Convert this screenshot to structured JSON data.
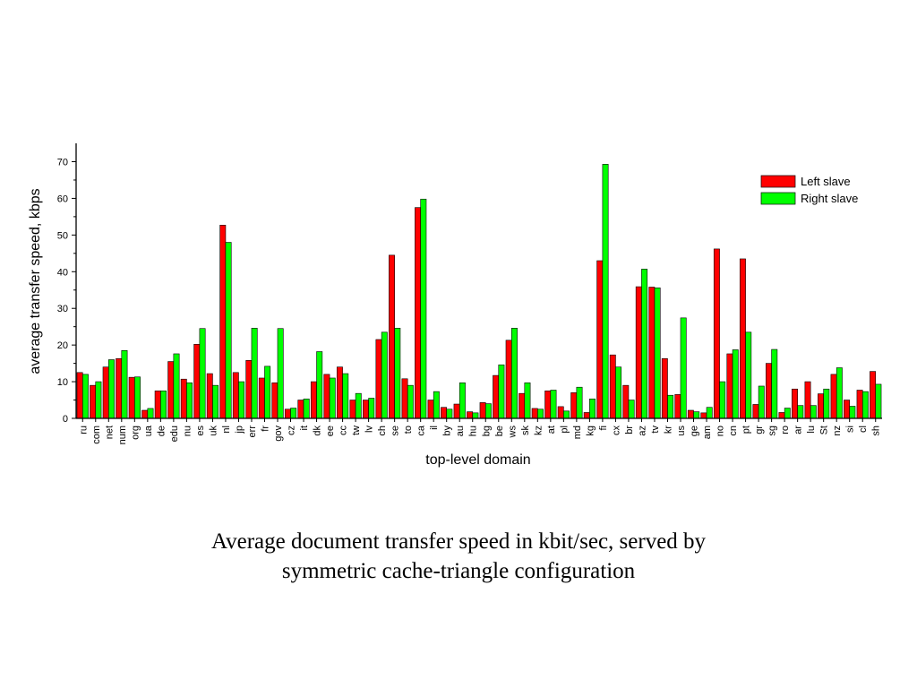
{
  "chart_data": {
    "type": "bar",
    "ylabel": "average transfer speed, kbps",
    "xlabel": "top-level domain",
    "ylim": [
      0,
      75
    ],
    "yticks": [
      0,
      10,
      20,
      30,
      40,
      50,
      60,
      70
    ],
    "legend_position": "top-right",
    "categories": [
      "ru",
      "com",
      "net",
      "num",
      "org",
      "ua",
      "de",
      "edu",
      "nu",
      "es",
      "uk",
      "nl",
      "jp",
      "err",
      "fr",
      "gov",
      "cz",
      "it",
      "dk",
      "ee",
      "cc",
      "tw",
      "lv",
      "ch",
      "se",
      "to",
      "ca",
      "il",
      "by",
      "au",
      "hu",
      "bg",
      "be",
      "ws",
      "sk",
      "kz",
      "at",
      "pl",
      "md",
      "kg",
      "fi",
      "cx",
      "br",
      "az",
      "tv",
      "kr",
      "us",
      "ge",
      "am",
      "no",
      "cn",
      "pt",
      "gr",
      "sg",
      "ro",
      "ar",
      "lu",
      "St",
      "nz",
      "si",
      "cl",
      "sh"
    ],
    "series": [
      {
        "name": "Left slave",
        "color": "#ff0000",
        "values": [
          12.5,
          9,
          14,
          16.3,
          11.2,
          2.2,
          7.5,
          15.5,
          10.7,
          20.2,
          12.2,
          52.7,
          12.5,
          15.8,
          11,
          9.7,
          2.5,
          5,
          10,
          12,
          14,
          5,
          5,
          21.5,
          44.5,
          10.8,
          57.5,
          5,
          3,
          3.9,
          1.8,
          4.3,
          11.7,
          21.3,
          6.8,
          2.7,
          7.5,
          3.2,
          7,
          1.6,
          43,
          17.3,
          9,
          35.9,
          35.8,
          16.3,
          6.5,
          2.2,
          1.5,
          46.2,
          17.6,
          43.5,
          3.8,
          15,
          1.6,
          8,
          10,
          6.7,
          12,
          5,
          7.7,
          12.8
        ]
      },
      {
        "name": "Right slave",
        "color": "#00ff00",
        "values": [
          12,
          10,
          16,
          18.5,
          11.3,
          2.7,
          7.5,
          17.6,
          9.7,
          24.5,
          9,
          48,
          10,
          24.6,
          14.2,
          24.5,
          2.8,
          5.3,
          18.2,
          11,
          12.2,
          6.8,
          5.5,
          23.5,
          24.6,
          9,
          59.8,
          7.3,
          2.5,
          9.7,
          1.5,
          4,
          14.6,
          24.6,
          9.7,
          2.5,
          7.7,
          2,
          8.5,
          5.3,
          69.3,
          14,
          5,
          40.7,
          35.6,
          6.3,
          27.4,
          1.8,
          3,
          10,
          18.7,
          23.5,
          8.8,
          18.8,
          2.8,
          3.5,
          3.5,
          8,
          13.8,
          3.3,
          7.3,
          9.3
        ]
      }
    ]
  },
  "caption": {
    "line1": "Average document transfer speed in kbit/sec, served by",
    "line2": "symmetric cache-triangle configuration"
  }
}
